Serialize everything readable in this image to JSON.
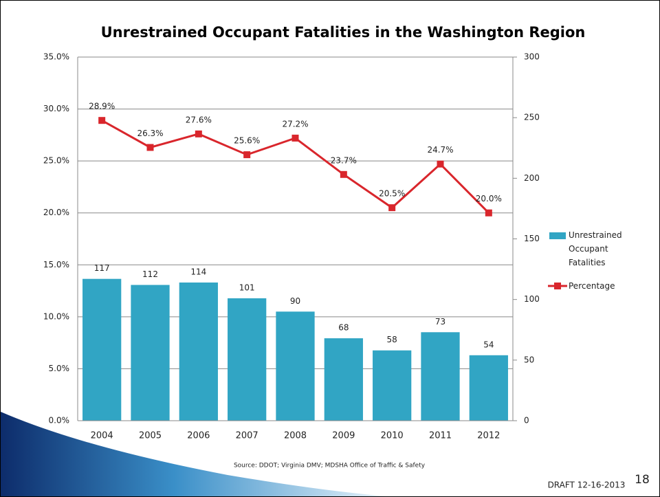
{
  "chart_data": {
    "type": "combo",
    "title": "Unrestrained Occupant Fatalities in the Washington Region",
    "categories": [
      "2004",
      "2005",
      "2006",
      "2007",
      "2008",
      "2009",
      "2010",
      "2011",
      "2012"
    ],
    "series": [
      {
        "name": "Unrestrained Occupant Fatalities",
        "type": "bar",
        "axis": "y2",
        "color": "#31a5c4",
        "values": [
          117,
          112,
          114,
          101,
          90,
          68,
          58,
          73,
          54
        ]
      },
      {
        "name": "Percentage",
        "type": "line",
        "axis": "y",
        "color": "#d9262c",
        "values": [
          28.9,
          26.3,
          27.6,
          25.6,
          27.2,
          23.7,
          20.5,
          24.7,
          20.0
        ],
        "value_labels": [
          "28.9%",
          "26.3%",
          "27.6%",
          "25.6%",
          "27.2%",
          "23.7%",
          "20.5%",
          "24.7%",
          "20.0%"
        ]
      }
    ],
    "ylim": [
      0,
      35
    ],
    "yticks": [
      {
        "value": 0,
        "label": "0.0%"
      },
      {
        "value": 5,
        "label": "5.0%"
      },
      {
        "value": 10,
        "label": "10.0%"
      },
      {
        "value": 15,
        "label": "15.0%"
      },
      {
        "value": 20,
        "label": "20.0%"
      },
      {
        "value": 25,
        "label": "25.0%"
      },
      {
        "value": 30,
        "label": "30.0%"
      },
      {
        "value": 35,
        "label": "35.0%"
      }
    ],
    "y2lim": [
      0,
      300
    ],
    "y2ticks": [
      0,
      50,
      100,
      150,
      200,
      250,
      300
    ],
    "grid": true,
    "legend": "right"
  },
  "source": "Source: DDOT; Virginia DMV;  MDSHA Office of Traffic & Safety",
  "draft": "DRAFT 12-16-2013",
  "page_number": "18"
}
